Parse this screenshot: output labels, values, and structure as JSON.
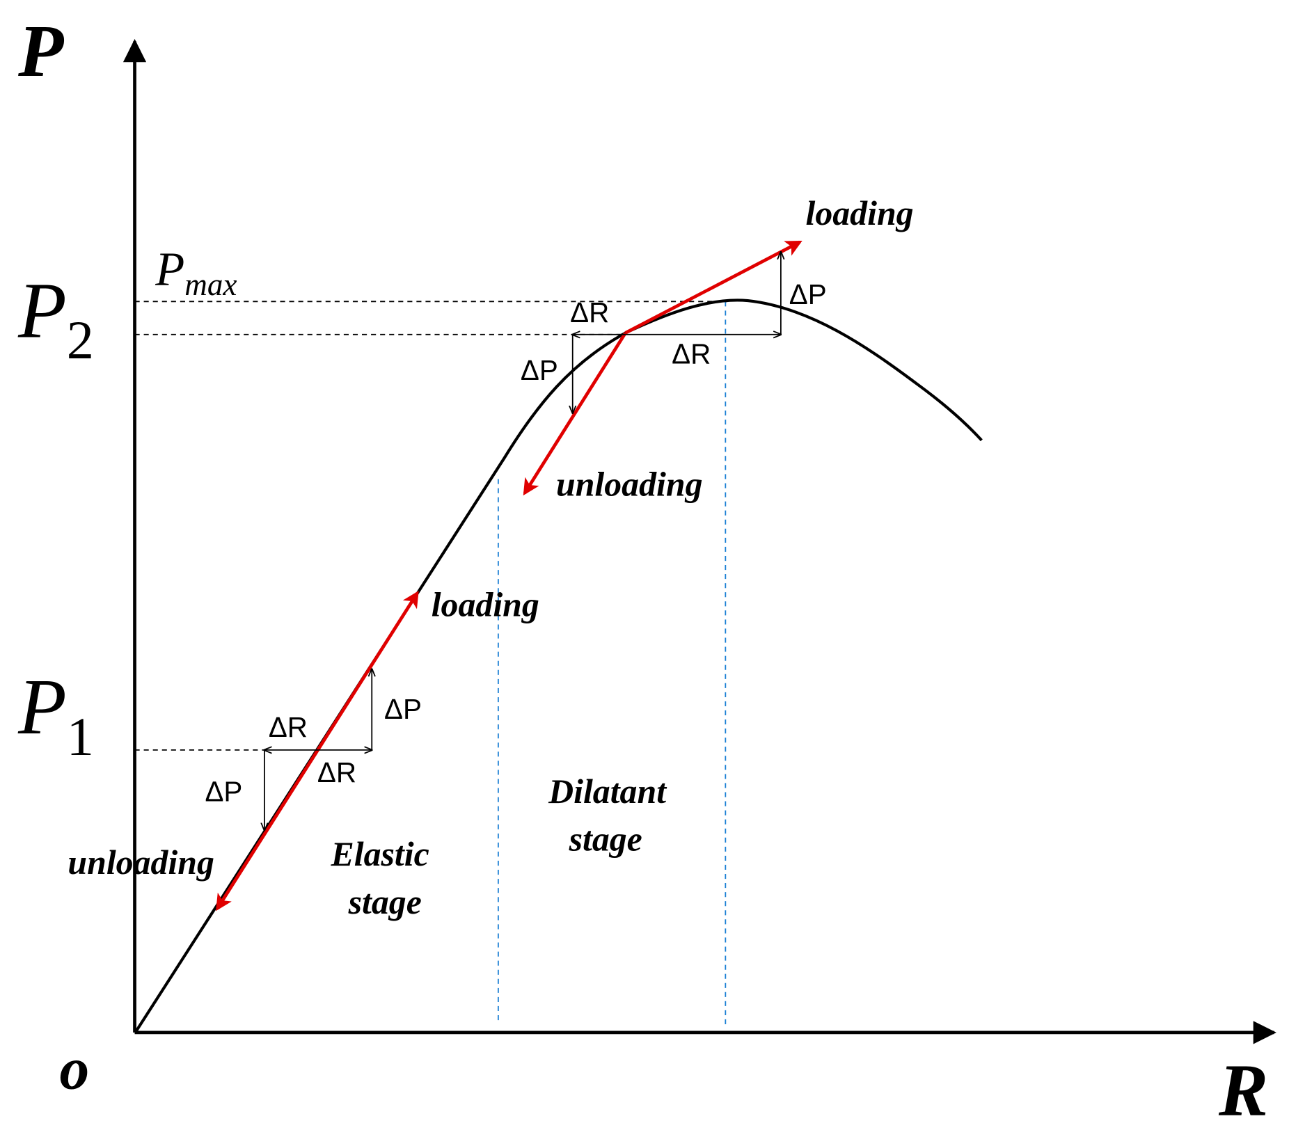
{
  "axes": {
    "y_label": "P",
    "x_label": "R",
    "origin": "o"
  },
  "levels": [
    {
      "label": "P",
      "subscript": "max"
    },
    {
      "label": "P",
      "subscript": "2"
    },
    {
      "label": "P",
      "subscript": "1"
    }
  ],
  "actions": [
    "loading",
    "unloading",
    "loading",
    "unloading"
  ],
  "increments": [
    "ΔR",
    "ΔR",
    "ΔP",
    "ΔP",
    "ΔR",
    "ΔP",
    "ΔR",
    "ΔP"
  ],
  "stages": [
    {
      "line1": "Elastic",
      "line2": "stage"
    },
    {
      "line1": "Dilatant",
      "line2": "stage"
    }
  ]
}
